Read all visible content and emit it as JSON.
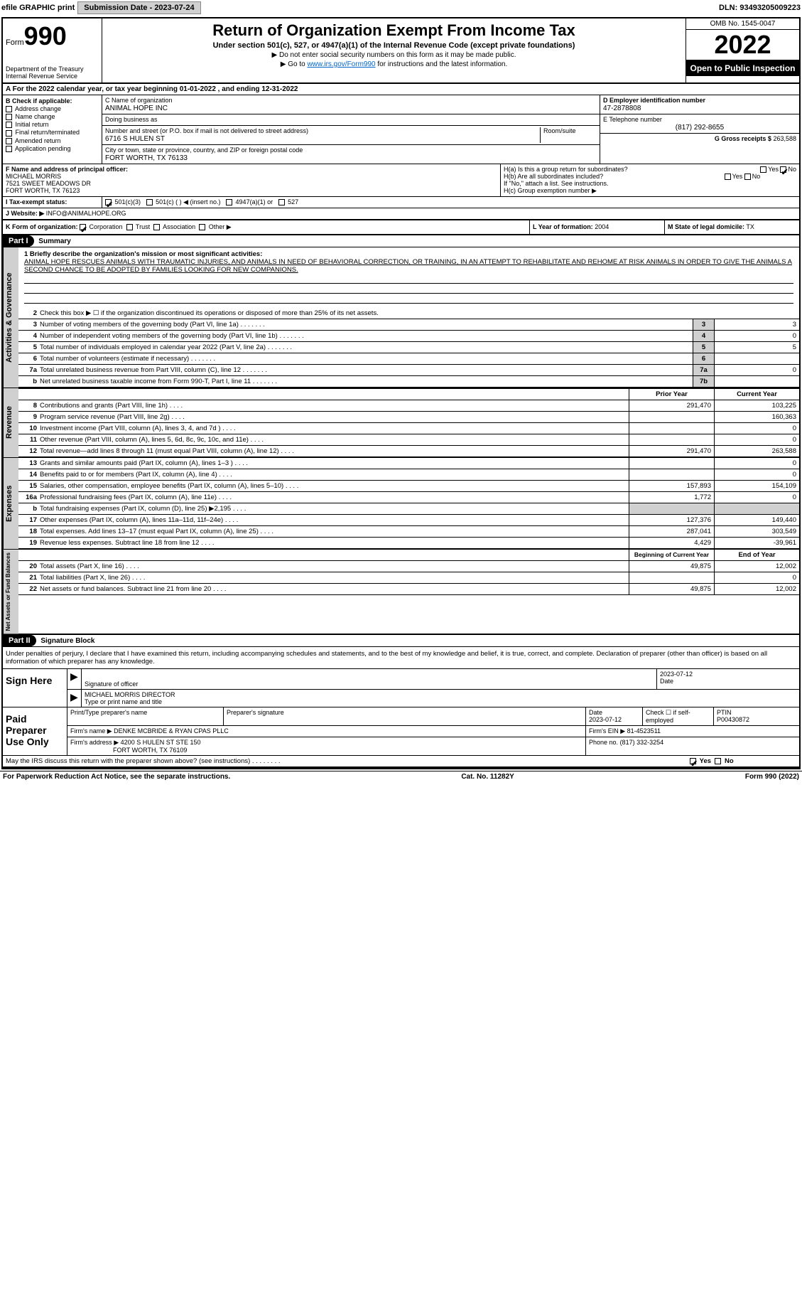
{
  "topbar": {
    "efile": "efile GRAPHIC print",
    "submission_btn": "Submission Date - 2023-07-24",
    "dln": "DLN: 93493205009223"
  },
  "header": {
    "form_word": "Form",
    "form_num": "990",
    "dept": "Department of the Treasury Internal Revenue Service",
    "title": "Return of Organization Exempt From Income Tax",
    "subtitle": "Under section 501(c), 527, or 4947(a)(1) of the Internal Revenue Code (except private foundations)",
    "inst1": "▶ Do not enter social security numbers on this form as it may be made public.",
    "inst2_pre": "▶ Go to ",
    "inst2_link": "www.irs.gov/Form990",
    "inst2_post": " for instructions and the latest information.",
    "omb": "OMB No. 1545-0047",
    "year": "2022",
    "public": "Open to Public Inspection"
  },
  "row_a": "A For the 2022 calendar year, or tax year beginning 01-01-2022    , and ending 12-31-2022",
  "col_b": {
    "header": "B Check if applicable:",
    "items": [
      "Address change",
      "Name change",
      "Initial return",
      "Final return/terminated",
      "Amended return",
      "Application pending"
    ]
  },
  "col_c": {
    "name_label": "C Name of organization",
    "name": "ANIMAL HOPE INC",
    "dba_label": "Doing business as",
    "dba": "",
    "addr_label": "Number and street (or P.O. box if mail is not delivered to street address)",
    "room_label": "Room/suite",
    "addr": "6716 S HULEN ST",
    "city_label": "City or town, state or province, country, and ZIP or foreign postal code",
    "city": "FORT WORTH, TX  76133"
  },
  "col_d": {
    "ein_label": "D Employer identification number",
    "ein": "47-2878808",
    "tel_label": "E Telephone number",
    "tel": "(817) 292-8655",
    "gross_label": "G Gross receipts $",
    "gross": "263,588"
  },
  "col_f": {
    "label": "F  Name and address of principal officer:",
    "name": "MICHAEL MORRIS",
    "addr1": "7521 SWEET MEADOWS DR",
    "addr2": "FORT WORTH, TX  76123"
  },
  "col_h": {
    "ha": "H(a)  Is this a group return for subordinates?",
    "hb": "H(b)  Are all subordinates included?",
    "hb_note": "If \"No,\" attach a list. See instructions.",
    "hc": "H(c)  Group exemption number ▶",
    "yes": "Yes",
    "no": "No"
  },
  "row_i": {
    "label": "I   Tax-exempt status:",
    "opt1": "501(c)(3)",
    "opt2": "501(c) (   ) ◀ (insert no.)",
    "opt3": "4947(a)(1) or",
    "opt4": "527"
  },
  "row_j": {
    "label": "J   Website: ▶",
    "val": "INFO@ANIMALHOPE.ORG"
  },
  "row_k": {
    "label": "K Form of organization:",
    "opts": [
      "Corporation",
      "Trust",
      "Association",
      "Other ▶"
    ],
    "l_label": "L Year of formation:",
    "l_val": "2004",
    "m_label": "M State of legal domicile:",
    "m_val": "TX"
  },
  "part1": {
    "header": "Part I",
    "title": "Summary",
    "tabs": [
      "Activities & Governance",
      "Revenue",
      "Expenses",
      "Net Assets or Fund Balances"
    ],
    "mission_label": "1  Briefly describe the organization's mission or most significant activities:",
    "mission": "ANIMAL HOPE RESCUES ANIMALS WITH TRAUMATIC INJURIES, AND ANIMALS IN NEED OF BEHAVIORAL CORRECTION, OR TRAINING, IN AN ATTEMPT TO REHABILITATE AND REHOME AT RISK ANIMALS IN ORDER TO GIVE THE ANIMALS A SECOND CHANCE TO BE ADOPTED BY FAMILIES LOOKING FOR NEW COMPANIONS.",
    "line2": "Check this box ▶ ☐  if the organization discontinued its operations or disposed of more than 25% of its net assets.",
    "lines_gov": [
      {
        "n": "3",
        "t": "Number of voting members of the governing body (Part VI, line 1a)",
        "box": "3",
        "v": "3"
      },
      {
        "n": "4",
        "t": "Number of independent voting members of the governing body (Part VI, line 1b)",
        "box": "4",
        "v": "0"
      },
      {
        "n": "5",
        "t": "Total number of individuals employed in calendar year 2022 (Part V, line 2a)",
        "box": "5",
        "v": "5"
      },
      {
        "n": "6",
        "t": "Total number of volunteers (estimate if necessary)",
        "box": "6",
        "v": ""
      },
      {
        "n": "7a",
        "t": "Total unrelated business revenue from Part VIII, column (C), line 12",
        "box": "7a",
        "v": "0"
      },
      {
        "n": "b",
        "t": "Net unrelated business taxable income from Form 990-T, Part I, line 11",
        "box": "7b",
        "v": ""
      }
    ],
    "col_prior": "Prior Year",
    "col_current": "Current Year",
    "lines_rev": [
      {
        "n": "8",
        "t": "Contributions and grants (Part VIII, line 1h)",
        "p": "291,470",
        "c": "103,225"
      },
      {
        "n": "9",
        "t": "Program service revenue (Part VIII, line 2g)",
        "p": "",
        "c": "160,363"
      },
      {
        "n": "10",
        "t": "Investment income (Part VIII, column (A), lines 3, 4, and 7d )",
        "p": "",
        "c": "0"
      },
      {
        "n": "11",
        "t": "Other revenue (Part VIII, column (A), lines 5, 6d, 8c, 9c, 10c, and 11e)",
        "p": "",
        "c": "0"
      },
      {
        "n": "12",
        "t": "Total revenue—add lines 8 through 11 (must equal Part VIII, column (A), line 12)",
        "p": "291,470",
        "c": "263,588"
      }
    ],
    "lines_exp": [
      {
        "n": "13",
        "t": "Grants and similar amounts paid (Part IX, column (A), lines 1–3 )",
        "p": "",
        "c": "0"
      },
      {
        "n": "14",
        "t": "Benefits paid to or for members (Part IX, column (A), line 4)",
        "p": "",
        "c": "0"
      },
      {
        "n": "15",
        "t": "Salaries, other compensation, employee benefits (Part IX, column (A), lines 5–10)",
        "p": "157,893",
        "c": "154,109"
      },
      {
        "n": "16a",
        "t": "Professional fundraising fees (Part IX, column (A), line 11e)",
        "p": "1,772",
        "c": "0"
      },
      {
        "n": "b",
        "t": "Total fundraising expenses (Part IX, column (D), line 25) ▶2,195",
        "p": "GRAY",
        "c": "GRAY"
      },
      {
        "n": "17",
        "t": "Other expenses (Part IX, column (A), lines 11a–11d, 11f–24e)",
        "p": "127,376",
        "c": "149,440"
      },
      {
        "n": "18",
        "t": "Total expenses. Add lines 13–17 (must equal Part IX, column (A), line 25)",
        "p": "287,041",
        "c": "303,549"
      },
      {
        "n": "19",
        "t": "Revenue less expenses. Subtract line 18 from line 12",
        "p": "4,429",
        "c": "-39,961"
      }
    ],
    "col_begin": "Beginning of Current Year",
    "col_end": "End of Year",
    "lines_net": [
      {
        "n": "20",
        "t": "Total assets (Part X, line 16)",
        "p": "49,875",
        "c": "12,002"
      },
      {
        "n": "21",
        "t": "Total liabilities (Part X, line 26)",
        "p": "",
        "c": "0"
      },
      {
        "n": "22",
        "t": "Net assets or fund balances. Subtract line 21 from line 20",
        "p": "49,875",
        "c": "12,002"
      }
    ]
  },
  "part2": {
    "header": "Part II",
    "title": "Signature Block",
    "declaration": "Under penalties of perjury, I declare that I have examined this return, including accompanying schedules and statements, and to the best of my knowledge and belief, it is true, correct, and complete. Declaration of preparer (other than officer) is based on all information of which preparer has any knowledge.",
    "sign_label": "Sign Here",
    "sig_officer": "Signature of officer",
    "sig_date": "Date",
    "sig_date_val": "2023-07-12",
    "sig_name": "MICHAEL MORRIS  DIRECTOR",
    "sig_name_label": "Type or print name and title",
    "paid_label": "Paid Preparer Use Only",
    "prep_name_label": "Print/Type preparer's name",
    "prep_sig_label": "Preparer's signature",
    "prep_date_label": "Date",
    "prep_date": "2023-07-12",
    "prep_check": "Check ☐ if self-employed",
    "ptin_label": "PTIN",
    "ptin": "P00430872",
    "firm_name_label": "Firm's name    ▶",
    "firm_name": "DENKE MCBRIDE & RYAN CPAS PLLC",
    "firm_ein_label": "Firm's EIN ▶",
    "firm_ein": "81-4523511",
    "firm_addr_label": "Firm's address ▶",
    "firm_addr1": "4200 S HULEN ST STE 150",
    "firm_addr2": "FORT WORTH, TX  76109",
    "phone_label": "Phone no.",
    "phone": "(817) 332-3254",
    "may_irs": "May the IRS discuss this return with the preparer shown above? (see instructions)",
    "yes": "Yes",
    "no": "No"
  },
  "footer": {
    "left": "For Paperwork Reduction Act Notice, see the separate instructions.",
    "center": "Cat. No. 11282Y",
    "right": "Form 990 (2022)"
  }
}
